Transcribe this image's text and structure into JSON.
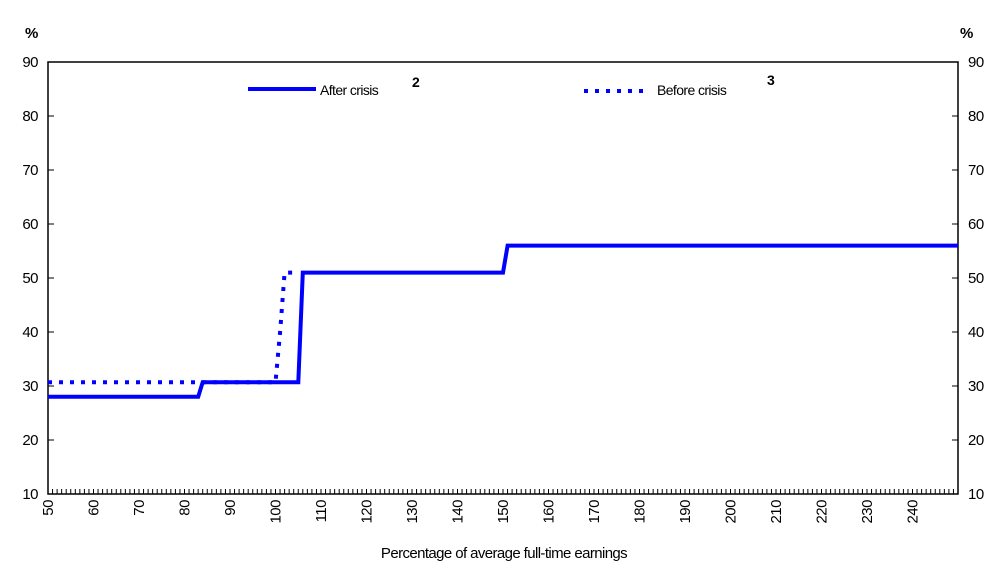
{
  "chart_data": {
    "type": "line",
    "title": "",
    "xlabel": "Percentage of average full-time earnings",
    "ylabel_left": "%",
    "ylabel_right": "%",
    "xlim": [
      50,
      250
    ],
    "ylim": [
      10,
      90
    ],
    "x_ticks": [
      50,
      60,
      70,
      80,
      90,
      100,
      110,
      120,
      130,
      140,
      150,
      160,
      170,
      180,
      190,
      200,
      210,
      220,
      230,
      240
    ],
    "y_ticks": [
      10,
      20,
      30,
      40,
      50,
      60,
      70,
      80,
      90
    ],
    "legend_position": "top",
    "series": [
      {
        "name": "After crisis",
        "footnote": "2",
        "style": "solid",
        "color": "#0000ff",
        "x": [
          50,
          83,
          84,
          105,
          106,
          150,
          151,
          250
        ],
        "y": [
          28,
          28,
          30.7,
          30.7,
          51,
          51,
          56,
          56
        ]
      },
      {
        "name": "Before crisis",
        "footnote": "3",
        "style": "dotted",
        "color": "#0000ff",
        "x": [
          50,
          100,
          101,
          102,
          105
        ],
        "y": [
          30.7,
          30.7,
          40,
          51,
          51
        ]
      }
    ]
  }
}
